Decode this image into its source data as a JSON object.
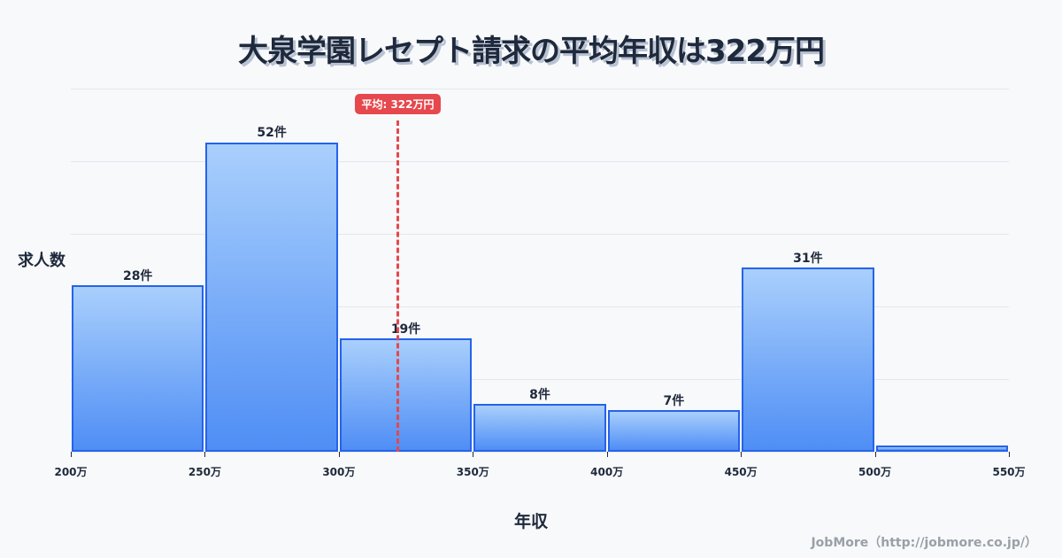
{
  "title": "大泉学園レセプト請求の平均年収は322万円",
  "axes": {
    "ylabel": "求人数",
    "xlabel": "年収"
  },
  "credit": "JobMore（http://jobmore.co.jp/）",
  "mean": {
    "label": "平均: 322万円",
    "value": 322
  },
  "colors": {
    "bar_border": "#2563eb",
    "bar_top": "#a9cffc",
    "bar_bottom": "#4f8ef5",
    "mean_line": "#e5484d",
    "text": "#1e293b"
  },
  "chart_data": {
    "type": "bar",
    "title": "大泉学園レセプト請求の平均年収は322万円",
    "xlabel": "年収",
    "ylabel": "求人数",
    "bins": [
      "200-250万",
      "250-300万",
      "300-350万",
      "350-400万",
      "400-450万",
      "450-500万",
      "500-550万"
    ],
    "categories": [
      "200万",
      "250万",
      "300万",
      "350万",
      "400万",
      "450万",
      "500万",
      "550万"
    ],
    "values": [
      28,
      52,
      19,
      8,
      7,
      31,
      1
    ],
    "value_labels": [
      "28件",
      "52件",
      "19件",
      "8件",
      "7件",
      "31件",
      ""
    ],
    "mean": 322,
    "mean_label": "平均: 322万円",
    "xlim": [
      200,
      550
    ],
    "ylim": [
      0,
      61
    ],
    "grid": true,
    "legend": null
  }
}
